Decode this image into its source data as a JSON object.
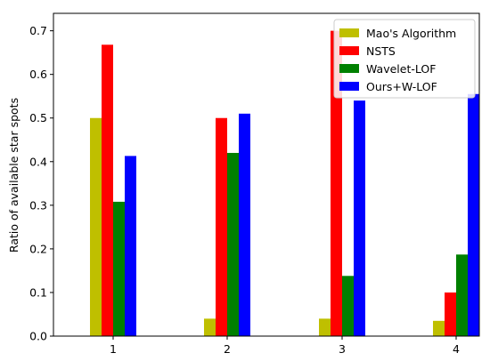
{
  "chart_data": {
    "type": "bar",
    "categories": [
      "1",
      "2",
      "3",
      "4"
    ],
    "series": [
      {
        "name": "Mao's Algorithm",
        "color": "#bfbf00",
        "values": [
          0.5,
          0.04,
          0.04,
          0.035
        ]
      },
      {
        "name": "NSTS",
        "color": "#ff0000",
        "values": [
          0.668,
          0.5,
          0.7,
          0.1
        ]
      },
      {
        "name": "Wavelet-LOF",
        "color": "#008000",
        "values": [
          0.308,
          0.42,
          0.138,
          0.187
        ]
      },
      {
        "name": "Ours+W-LOF",
        "color": "#0000ff",
        "values": [
          0.413,
          0.51,
          0.54,
          0.555
        ]
      }
    ],
    "title": "",
    "xlabel": "",
    "ylabel": "Ratio of available star spots",
    "ylim": [
      0,
      0.74
    ],
    "yticks": [
      "0.0",
      "0.1",
      "0.2",
      "0.3",
      "0.4",
      "0.5",
      "0.6",
      "0.7"
    ],
    "grid": false,
    "legend_position": "top-right"
  }
}
